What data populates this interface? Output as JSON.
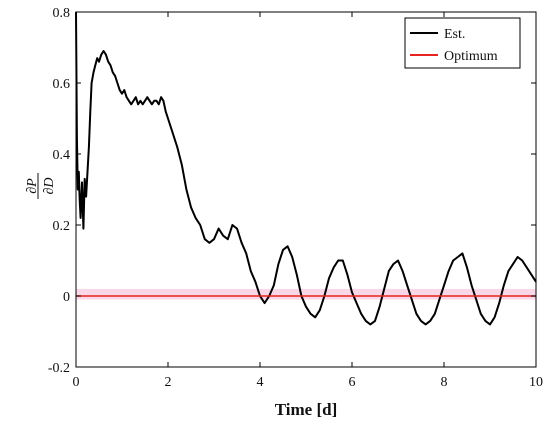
{
  "chart_data": {
    "type": "line",
    "title": "",
    "xlabel": "Time [d]",
    "ylabel": "∂P/∂D",
    "ylabel_parts": {
      "num": "∂P",
      "den": "∂D"
    },
    "xlim": [
      0,
      10
    ],
    "ylim": [
      -0.2,
      0.8
    ],
    "xticks": [
      0,
      2,
      4,
      6,
      8,
      10
    ],
    "yticks": [
      -0.2,
      0,
      0.2,
      0.4,
      0.6,
      0.8
    ],
    "xtick_labels": [
      "0",
      "2",
      "4",
      "6",
      "8",
      "10"
    ],
    "ytick_labels": [
      "-0.2",
      "0",
      "0.2",
      "0.4",
      "0.6",
      "0.8"
    ],
    "grid": false,
    "legend": {
      "position": "top-right",
      "entries": [
        "Est.",
        "Optimum"
      ]
    },
    "colors": {
      "est": "#000000",
      "optimum": "#e8231f",
      "band": "#f7c6dd"
    },
    "optimum_band": [
      -0.01,
      0.02
    ],
    "series": [
      {
        "name": "Est.",
        "x": [
          0,
          0.02,
          0.04,
          0.06,
          0.08,
          0.1,
          0.13,
          0.16,
          0.19,
          0.22,
          0.25,
          0.28,
          0.31,
          0.34,
          0.38,
          0.42,
          0.46,
          0.5,
          0.55,
          0.6,
          0.65,
          0.7,
          0.75,
          0.8,
          0.85,
          0.9,
          0.95,
          1.0,
          1.05,
          1.1,
          1.15,
          1.2,
          1.25,
          1.3,
          1.35,
          1.4,
          1.45,
          1.5,
          1.55,
          1.6,
          1.65,
          1.7,
          1.75,
          1.8,
          1.85,
          1.9,
          1.95,
          2.0,
          2.1,
          2.2,
          2.3,
          2.4,
          2.5,
          2.6,
          2.7,
          2.8,
          2.9,
          3.0,
          3.1,
          3.2,
          3.3,
          3.4,
          3.5,
          3.6,
          3.7,
          3.8,
          3.9,
          4.0,
          4.1,
          4.2,
          4.3,
          4.4,
          4.5,
          4.6,
          4.7,
          4.8,
          4.9,
          5.0,
          5.1,
          5.2,
          5.3,
          5.4,
          5.5,
          5.6,
          5.7,
          5.8,
          5.9,
          6.0,
          6.1,
          6.2,
          6.3,
          6.4,
          6.5,
          6.6,
          6.7,
          6.8,
          6.9,
          7.0,
          7.1,
          7.2,
          7.3,
          7.4,
          7.5,
          7.6,
          7.7,
          7.8,
          7.9,
          8.0,
          8.1,
          8.2,
          8.3,
          8.4,
          8.5,
          8.6,
          8.7,
          8.8,
          8.9,
          9.0,
          9.1,
          9.2,
          9.3,
          9.4,
          9.5,
          9.6,
          9.7,
          9.8,
          9.9,
          10.0
        ],
        "y": [
          0.8,
          0.45,
          0.3,
          0.35,
          0.27,
          0.22,
          0.32,
          0.19,
          0.33,
          0.28,
          0.35,
          0.42,
          0.52,
          0.6,
          0.63,
          0.65,
          0.67,
          0.66,
          0.68,
          0.69,
          0.68,
          0.66,
          0.65,
          0.63,
          0.62,
          0.6,
          0.58,
          0.57,
          0.58,
          0.56,
          0.55,
          0.54,
          0.55,
          0.56,
          0.54,
          0.55,
          0.54,
          0.55,
          0.56,
          0.55,
          0.54,
          0.55,
          0.55,
          0.54,
          0.56,
          0.55,
          0.52,
          0.5,
          0.46,
          0.42,
          0.37,
          0.3,
          0.25,
          0.22,
          0.2,
          0.16,
          0.15,
          0.16,
          0.19,
          0.17,
          0.16,
          0.2,
          0.19,
          0.15,
          0.12,
          0.07,
          0.04,
          0.0,
          -0.02,
          0.0,
          0.03,
          0.09,
          0.13,
          0.14,
          0.11,
          0.06,
          0.0,
          -0.03,
          -0.05,
          -0.06,
          -0.04,
          0.0,
          0.05,
          0.08,
          0.1,
          0.1,
          0.06,
          0.01,
          -0.02,
          -0.05,
          -0.07,
          -0.08,
          -0.07,
          -0.03,
          0.02,
          0.07,
          0.09,
          0.1,
          0.07,
          0.03,
          -0.01,
          -0.05,
          -0.07,
          -0.08,
          -0.07,
          -0.05,
          -0.01,
          0.03,
          0.07,
          0.1,
          0.11,
          0.12,
          0.08,
          0.03,
          -0.01,
          -0.05,
          -0.07,
          -0.08,
          -0.06,
          -0.02,
          0.03,
          0.07,
          0.09,
          0.11,
          0.1,
          0.08,
          0.06,
          0.04
        ]
      },
      {
        "name": "Optimum",
        "x": [
          0,
          10
        ],
        "y": [
          0,
          0
        ]
      }
    ]
  }
}
